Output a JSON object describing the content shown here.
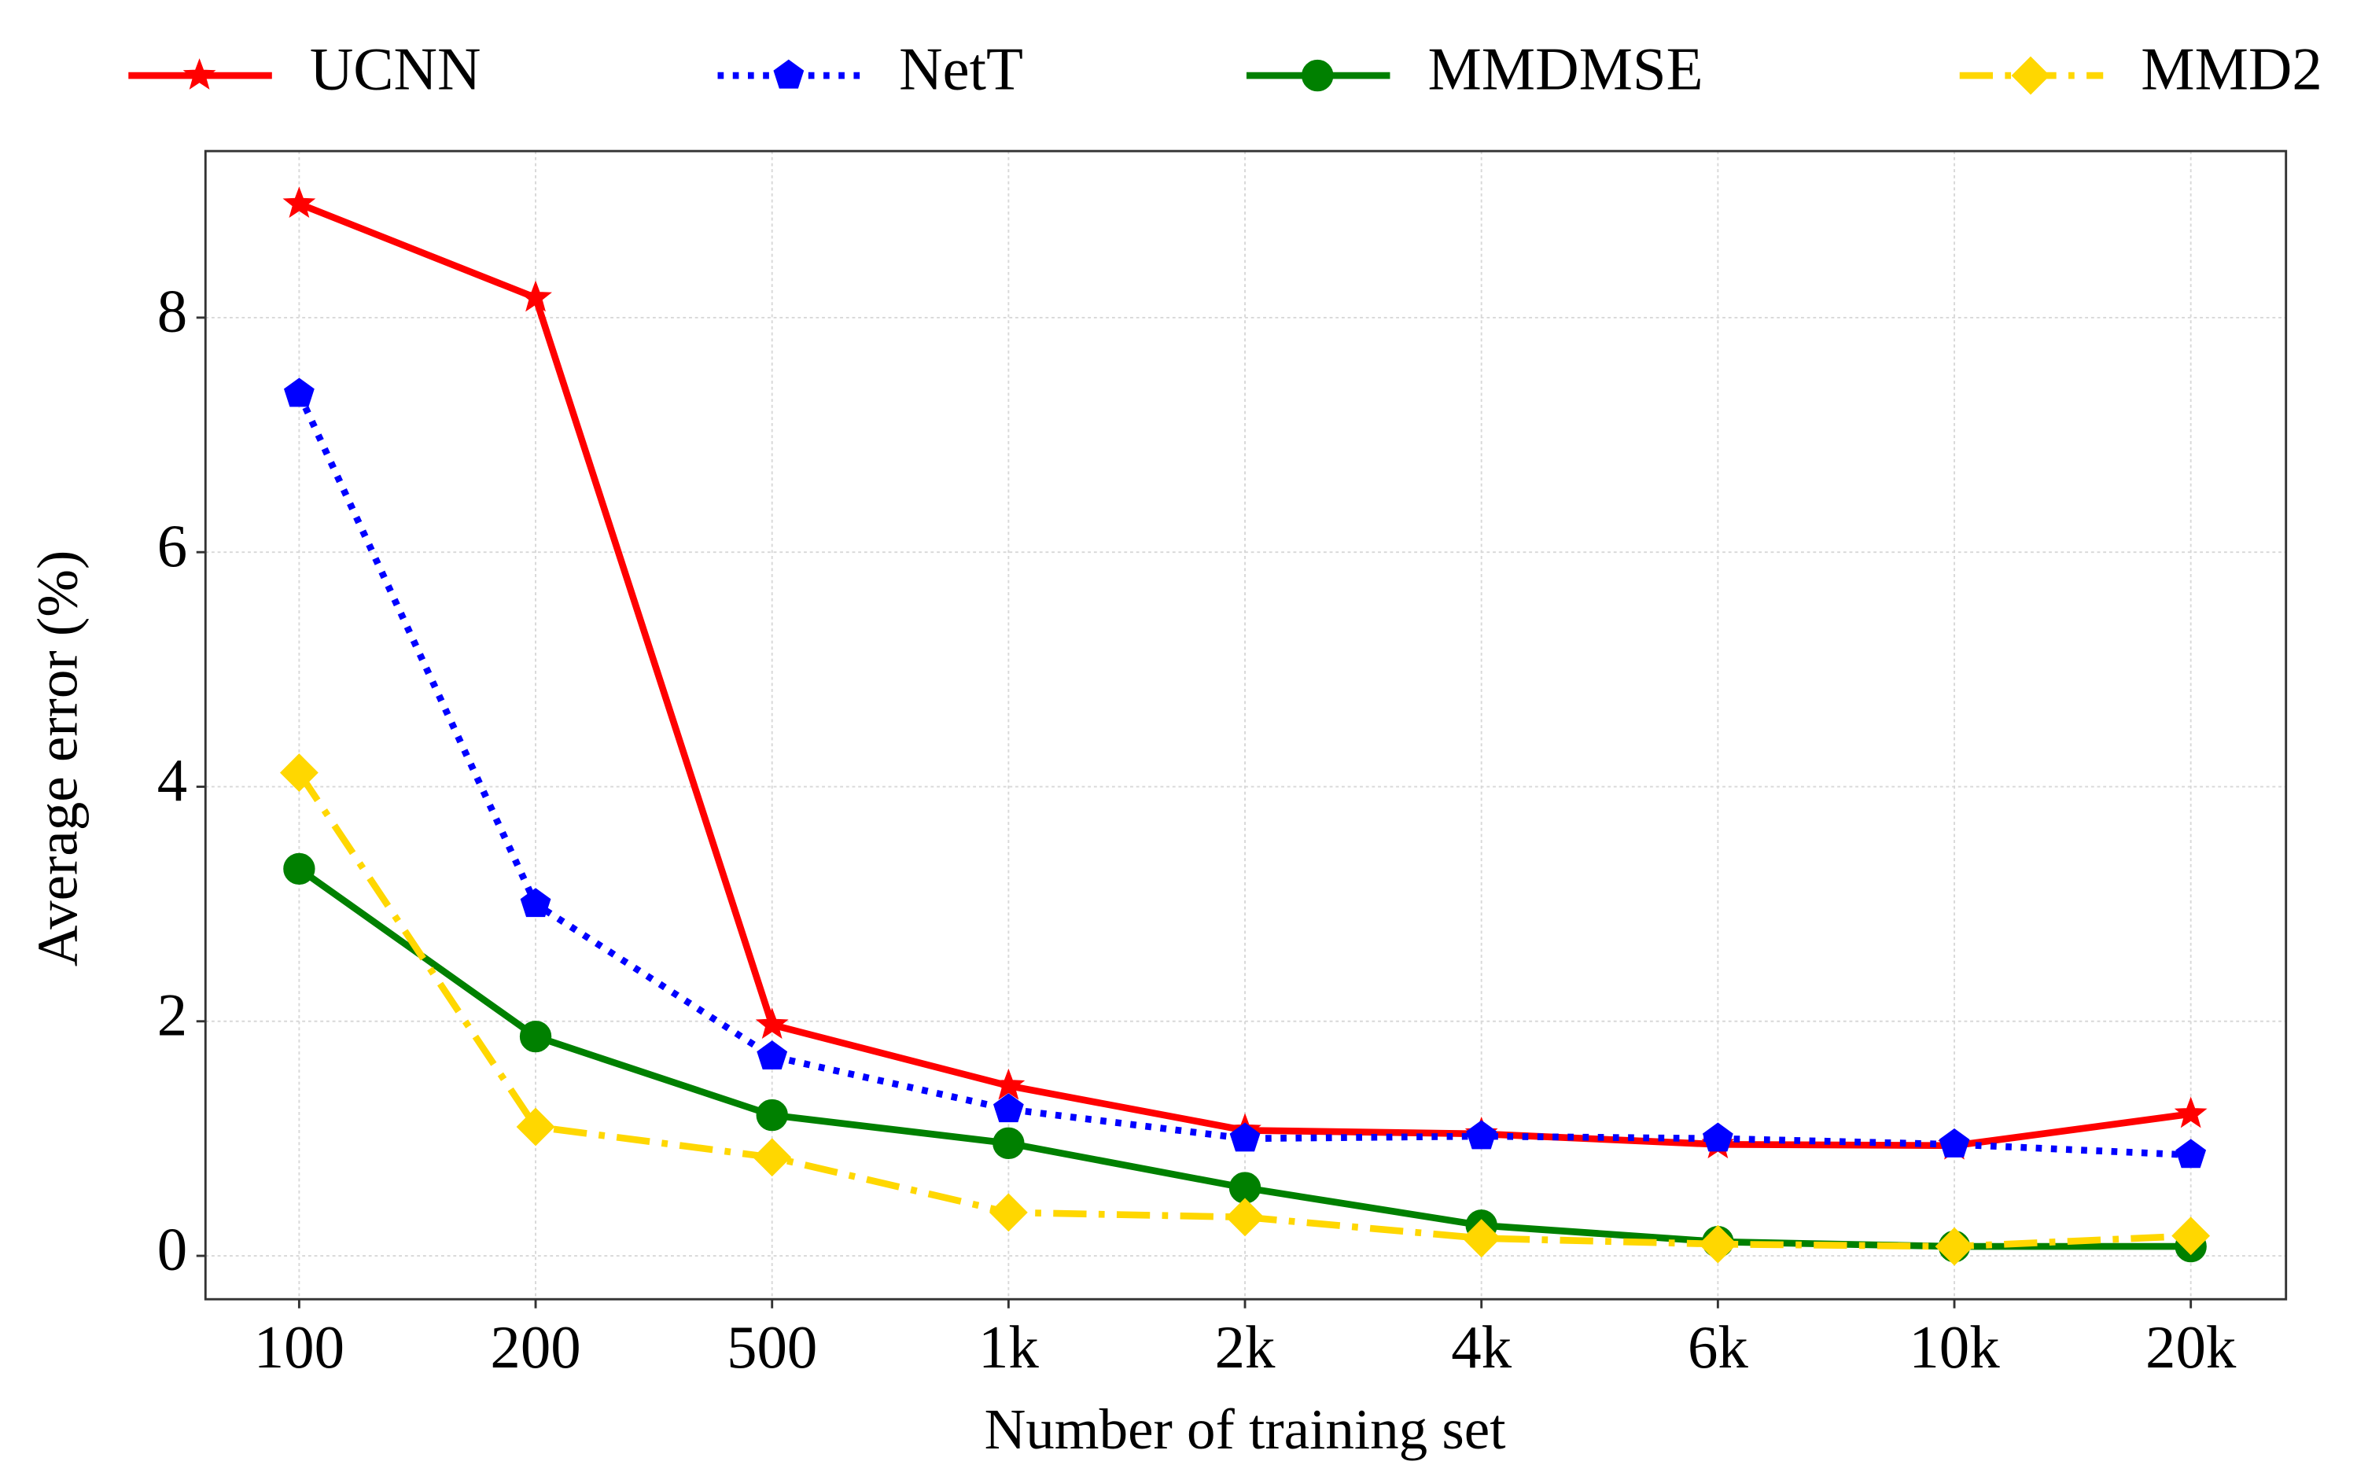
{
  "chart_data": {
    "type": "line",
    "xlabel": "Number of training set",
    "ylabel": "Average error (%)",
    "categories": [
      "100",
      "200",
      "500",
      "1k",
      "2k",
      "4k",
      "6k",
      "10k",
      "20k"
    ],
    "series": [
      {
        "name": "UCNN",
        "color": "#ff0000",
        "dash": "solid",
        "marker": "star",
        "values": [
          8.97,
          8.17,
          1.97,
          1.45,
          1.07,
          1.04,
          0.95,
          0.94,
          1.21
        ]
      },
      {
        "name": "NetT",
        "color": "#0000ff",
        "dash": "dotted",
        "marker": "pentagon",
        "values": [
          7.35,
          3.0,
          1.7,
          1.25,
          1.0,
          1.02,
          1.0,
          0.95,
          0.86
        ]
      },
      {
        "name": "MMDMSE",
        "color": "#008000",
        "dash": "solid",
        "marker": "circle",
        "values": [
          3.3,
          1.87,
          1.2,
          0.96,
          0.58,
          0.26,
          0.12,
          0.08,
          0.08
        ]
      },
      {
        "name": "MMD2",
        "color": "#ffd700",
        "dash": "dashdot",
        "marker": "diamond",
        "values": [
          4.12,
          1.1,
          0.84,
          0.37,
          0.33,
          0.15,
          0.1,
          0.08,
          0.17
        ]
      }
    ],
    "ylim": [
      -0.37,
      9.42
    ],
    "yticks": [
      0,
      2,
      4,
      6,
      8
    ],
    "grid": true,
    "legend": "top"
  }
}
